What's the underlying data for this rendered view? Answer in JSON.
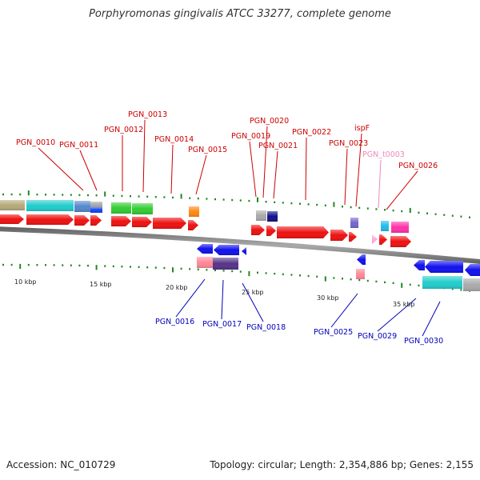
{
  "title": "Porphyromonas gingivalis ATCC 33277, complete genome",
  "footer": {
    "accession": "Accession: NC_010729",
    "summary": "Topology: circular; Length: 2,354,886 bp; Genes: 2,155"
  },
  "scale_labels": [
    "10 kbp",
    "15 kbp",
    "20 kbp",
    "25 kbp",
    "30 kbp",
    "35 kbp"
  ],
  "colors": {
    "forward_gene": "#ee1111",
    "reverse_gene": "#1111ee",
    "label_forward": "#cc0000",
    "label_reverse": "#0000bb",
    "label_trna": "#ee88bb",
    "backbone": "#888888"
  },
  "gene_labels": {
    "top": [
      {
        "name": "PGN_0010",
        "color": "label_forward"
      },
      {
        "name": "PGN_0011",
        "color": "label_forward"
      },
      {
        "name": "PGN_0012",
        "color": "label_forward"
      },
      {
        "name": "PGN_0013",
        "color": "label_forward"
      },
      {
        "name": "PGN_0014",
        "color": "label_forward"
      },
      {
        "name": "PGN_0015",
        "color": "label_forward"
      },
      {
        "name": "PGN_0019",
        "color": "label_forward"
      },
      {
        "name": "PGN_0020",
        "color": "label_forward"
      },
      {
        "name": "PGN_0021",
        "color": "label_forward"
      },
      {
        "name": "PGN_0022",
        "color": "label_forward"
      },
      {
        "name": "PGN_0023",
        "color": "label_forward"
      },
      {
        "name": "ispF",
        "color": "label_forward"
      },
      {
        "name": "PGN_t0003",
        "color": "label_trna"
      },
      {
        "name": "PGN_0026",
        "color": "label_forward"
      }
    ],
    "bottom": [
      {
        "name": "PGN_0016",
        "color": "label_reverse"
      },
      {
        "name": "PGN_0017",
        "color": "label_reverse"
      },
      {
        "name": "PGN_0018",
        "color": "label_reverse"
      },
      {
        "name": "PGN_0025",
        "color": "label_reverse"
      },
      {
        "name": "PGN_0029",
        "color": "label_reverse"
      },
      {
        "name": "PGN_0030",
        "color": "label_reverse"
      }
    ]
  }
}
